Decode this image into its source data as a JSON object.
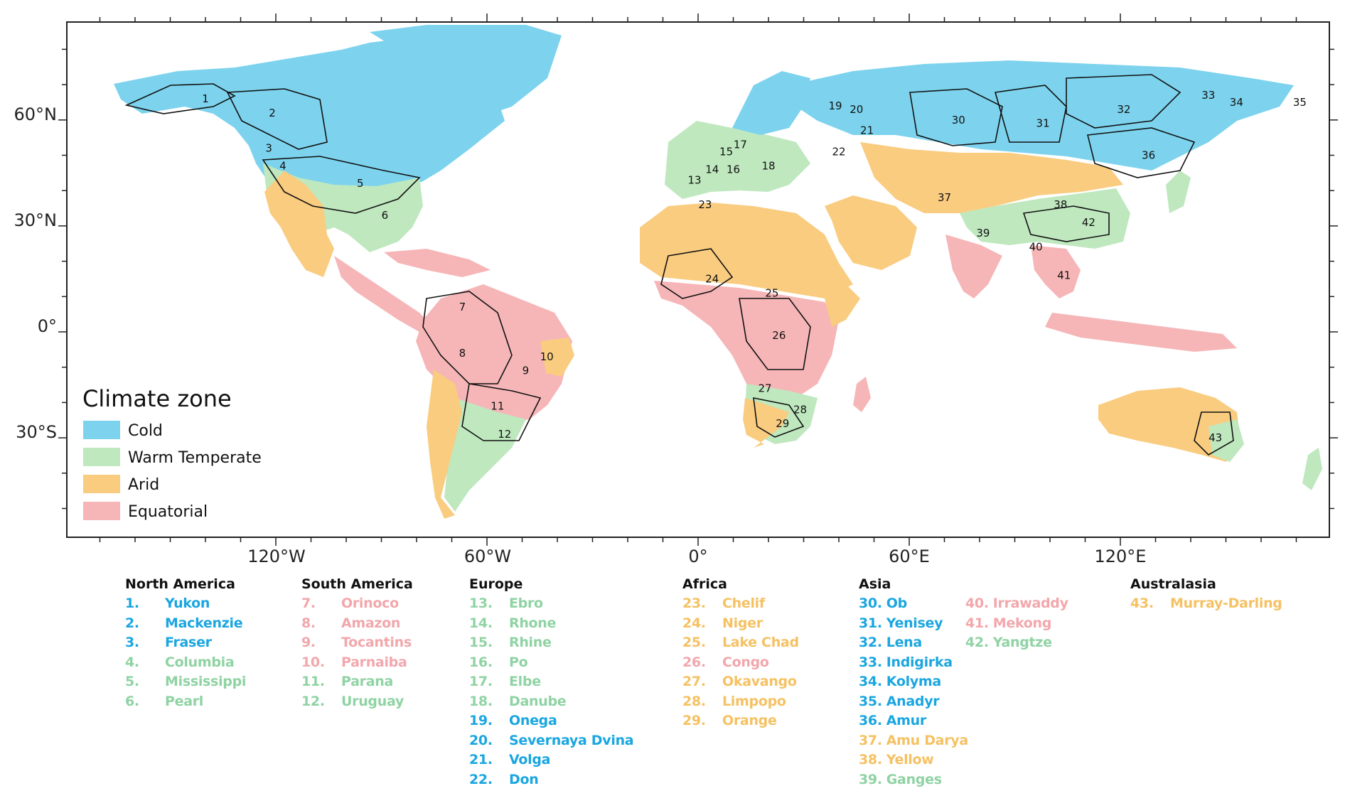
{
  "colors": {
    "cold": "#7dd3ee",
    "warm_temperate": "#bfe8bf",
    "arid": "#f9cc7f",
    "equatorial": "#f6b6b8",
    "cold_text": "#1aa6e0",
    "warm_text": "#8fd3a3",
    "arid_text": "#f5c163",
    "equatorial_text": "#f2a7ac"
  },
  "axes": {
    "lat_labels": [
      "60°N",
      "30°N",
      "0°",
      "30°S"
    ],
    "lon_labels": [
      "120°W",
      "60°W",
      "0°",
      "60°E",
      "120°E"
    ]
  },
  "legend": {
    "title": "Climate zone",
    "items": [
      {
        "label": "Cold",
        "zone": "cold"
      },
      {
        "label": "Warm Temperate",
        "zone": "warm_temperate"
      },
      {
        "label": "Arid",
        "zone": "arid"
      },
      {
        "label": "Equatorial",
        "zone": "equatorial"
      }
    ]
  },
  "basin_markers": [
    {
      "n": "1",
      "lon": -140,
      "lat": 65
    },
    {
      "n": "2",
      "lon": -121,
      "lat": 61
    },
    {
      "n": "3",
      "lon": -122,
      "lat": 51
    },
    {
      "n": "4",
      "lon": -118,
      "lat": 46
    },
    {
      "n": "5",
      "lon": -96,
      "lat": 41
    },
    {
      "n": "6",
      "lon": -89,
      "lat": 32
    },
    {
      "n": "7",
      "lon": -67,
      "lat": 6
    },
    {
      "n": "8",
      "lon": -67,
      "lat": -7
    },
    {
      "n": "9",
      "lon": -49,
      "lat": -12
    },
    {
      "n": "10",
      "lon": -43,
      "lat": -8
    },
    {
      "n": "11",
      "lon": -57,
      "lat": -22
    },
    {
      "n": "12",
      "lon": -55,
      "lat": -30
    },
    {
      "n": "13",
      "lon": -1,
      "lat": 42
    },
    {
      "n": "14",
      "lon": 4,
      "lat": 45
    },
    {
      "n": "15",
      "lon": 8,
      "lat": 50
    },
    {
      "n": "16",
      "lon": 10,
      "lat": 45
    },
    {
      "n": "17",
      "lon": 12,
      "lat": 52
    },
    {
      "n": "18",
      "lon": 20,
      "lat": 46
    },
    {
      "n": "19",
      "lon": 39,
      "lat": 63
    },
    {
      "n": "20",
      "lon": 45,
      "lat": 62
    },
    {
      "n": "21",
      "lon": 48,
      "lat": 56
    },
    {
      "n": "22",
      "lon": 40,
      "lat": 50
    },
    {
      "n": "23",
      "lon": 2,
      "lat": 35
    },
    {
      "n": "24",
      "lon": 4,
      "lat": 14
    },
    {
      "n": "25",
      "lon": 21,
      "lat": 10
    },
    {
      "n": "26",
      "lon": 23,
      "lat": -2
    },
    {
      "n": "27",
      "lon": 19,
      "lat": -17
    },
    {
      "n": "28",
      "lon": 29,
      "lat": -23
    },
    {
      "n": "29",
      "lon": 24,
      "lat": -27
    },
    {
      "n": "30",
      "lon": 74,
      "lat": 59
    },
    {
      "n": "31",
      "lon": 98,
      "lat": 58
    },
    {
      "n": "32",
      "lon": 121,
      "lat": 62
    },
    {
      "n": "33",
      "lon": 145,
      "lat": 66
    },
    {
      "n": "34",
      "lon": 153,
      "lat": 64
    },
    {
      "n": "35",
      "lon": 171,
      "lat": 64
    },
    {
      "n": "36",
      "lon": 128,
      "lat": 49
    },
    {
      "n": "37",
      "lon": 70,
      "lat": 37
    },
    {
      "n": "38",
      "lon": 103,
      "lat": 35
    },
    {
      "n": "39",
      "lon": 81,
      "lat": 27
    },
    {
      "n": "40",
      "lon": 96,
      "lat": 23
    },
    {
      "n": "41",
      "lon": 104,
      "lat": 15
    },
    {
      "n": "42",
      "lon": 111,
      "lat": 30
    },
    {
      "n": "43",
      "lon": 147,
      "lat": -31
    }
  ],
  "basin_lists": [
    {
      "region": "North America",
      "items": [
        {
          "num": "1.",
          "name": "Yukon",
          "zone": "cold"
        },
        {
          "num": "2.",
          "name": "Mackenzie",
          "zone": "cold"
        },
        {
          "num": "3.",
          "name": "Fraser",
          "zone": "cold"
        },
        {
          "num": "4.",
          "name": "Columbia",
          "zone": "warm_temperate"
        },
        {
          "num": "5.",
          "name": "Mississippi",
          "zone": "warm_temperate"
        },
        {
          "num": "6.",
          "name": "Pearl",
          "zone": "warm_temperate"
        }
      ]
    },
    {
      "region": "South America",
      "items": [
        {
          "num": "7.",
          "name": "Orinoco",
          "zone": "equatorial"
        },
        {
          "num": "8.",
          "name": "Amazon",
          "zone": "equatorial"
        },
        {
          "num": "9.",
          "name": "Tocantins",
          "zone": "equatorial"
        },
        {
          "num": "10.",
          "name": "Parnaiba",
          "zone": "equatorial"
        },
        {
          "num": "11.",
          "name": "Parana",
          "zone": "warm_temperate"
        },
        {
          "num": "12.",
          "name": "Uruguay",
          "zone": "warm_temperate"
        }
      ]
    },
    {
      "region": "Europe",
      "items": [
        {
          "num": "13.",
          "name": "Ebro",
          "zone": "warm_temperate"
        },
        {
          "num": "14.",
          "name": "Rhone",
          "zone": "warm_temperate"
        },
        {
          "num": "15.",
          "name": "Rhine",
          "zone": "warm_temperate"
        },
        {
          "num": "16.",
          "name": "Po",
          "zone": "warm_temperate"
        },
        {
          "num": "17.",
          "name": "Elbe",
          "zone": "warm_temperate"
        },
        {
          "num": "18.",
          "name": "Danube",
          "zone": "warm_temperate"
        },
        {
          "num": "19.",
          "name": "Onega",
          "zone": "cold"
        },
        {
          "num": "20.",
          "name": "Severnaya Dvina",
          "zone": "cold"
        },
        {
          "num": "21.",
          "name": "Volga",
          "zone": "cold"
        },
        {
          "num": "22.",
          "name": "Don",
          "zone": "cold"
        }
      ]
    },
    {
      "region": "Africa",
      "items": [
        {
          "num": "23.",
          "name": "Chelif",
          "zone": "arid"
        },
        {
          "num": "24.",
          "name": "Niger",
          "zone": "arid"
        },
        {
          "num": "25.",
          "name": "Lake Chad",
          "zone": "arid"
        },
        {
          "num": "26.",
          "name": "Congo",
          "zone": "equatorial"
        },
        {
          "num": "27.",
          "name": "Okavango",
          "zone": "arid"
        },
        {
          "num": "28.",
          "name": "Limpopo",
          "zone": "arid"
        },
        {
          "num": "29.",
          "name": "Orange",
          "zone": "arid"
        }
      ]
    },
    {
      "region": "Asia",
      "items": [
        {
          "num": "30.",
          "name": "Ob",
          "zone": "cold"
        },
        {
          "num": "31.",
          "name": "Yenisey",
          "zone": "cold"
        },
        {
          "num": "32.",
          "name": "Lena",
          "zone": "cold"
        },
        {
          "num": "33.",
          "name": "Indigirka",
          "zone": "cold"
        },
        {
          "num": "34.",
          "name": "Kolyma",
          "zone": "cold"
        },
        {
          "num": "35.",
          "name": "Anadyr",
          "zone": "cold"
        },
        {
          "num": "36.",
          "name": "Amur",
          "zone": "cold"
        },
        {
          "num": "37.",
          "name": "Amu Darya",
          "zone": "arid"
        },
        {
          "num": "38.",
          "name": "Yellow",
          "zone": "arid"
        },
        {
          "num": "39.",
          "name": "Ganges",
          "zone": "warm_temperate"
        }
      ]
    },
    {
      "region": "",
      "items": [
        {
          "num": "40.",
          "name": "Irrawaddy",
          "zone": "equatorial"
        },
        {
          "num": "41.",
          "name": "Mekong",
          "zone": "equatorial"
        },
        {
          "num": "42.",
          "name": "Yangtze",
          "zone": "warm_temperate"
        }
      ]
    },
    {
      "region": "Australasia",
      "items": [
        {
          "num": "43.",
          "name": "Murray-Darling",
          "zone": "arid"
        }
      ]
    }
  ]
}
